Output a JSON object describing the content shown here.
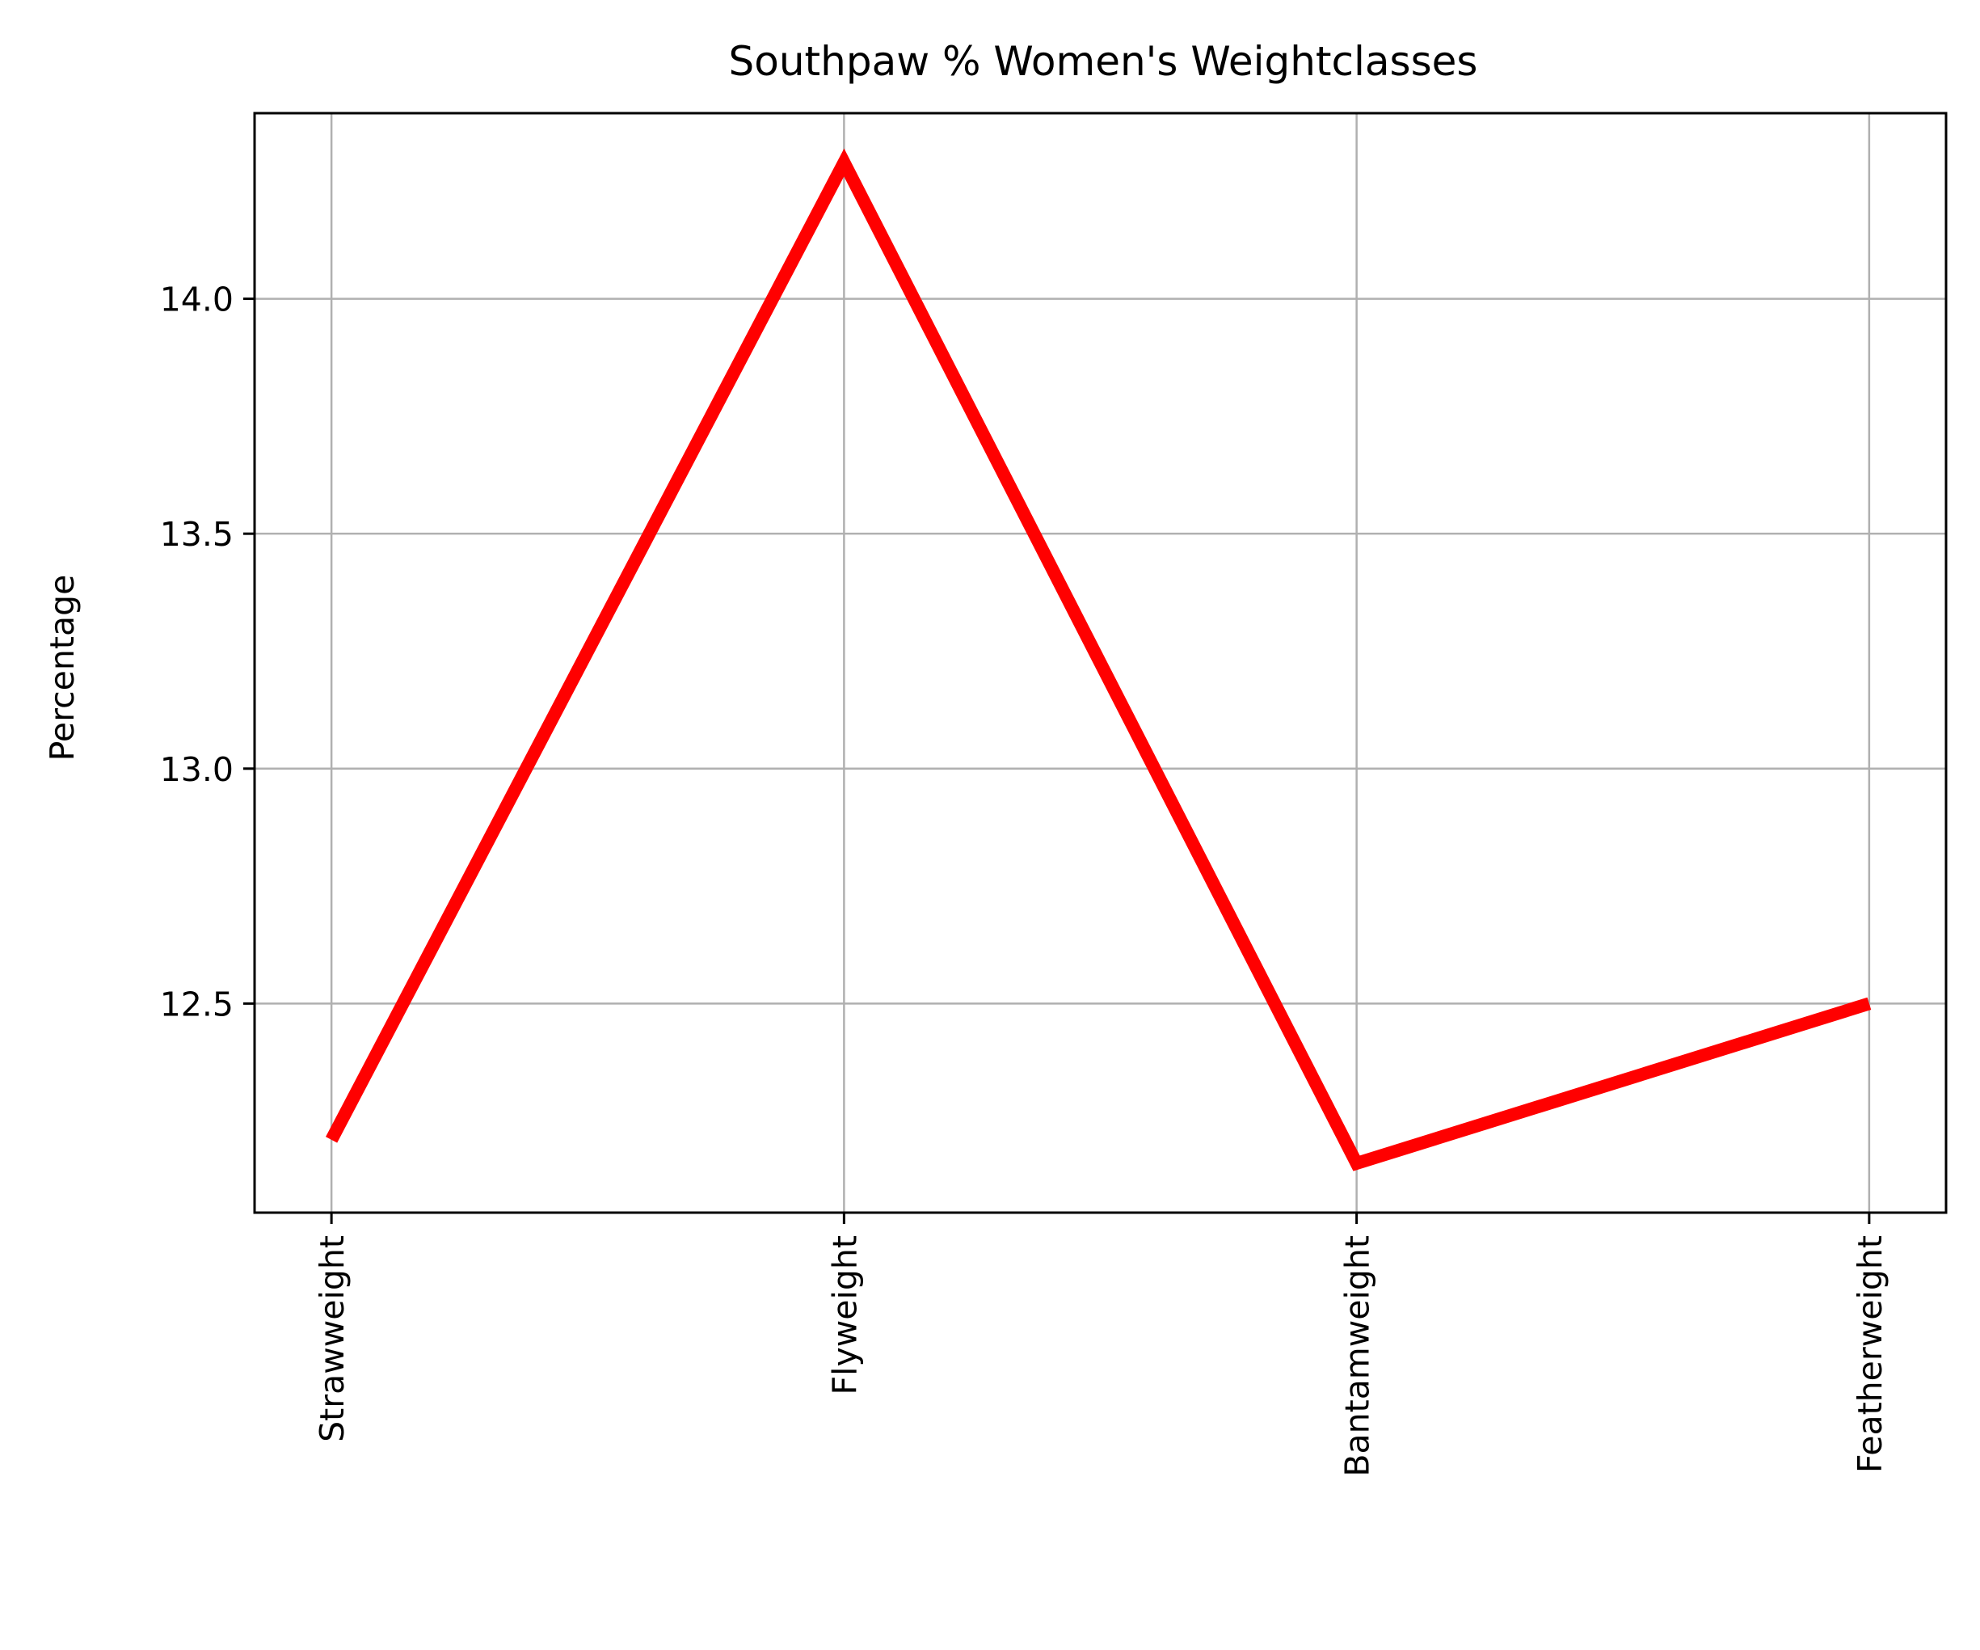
{
  "chart_data": {
    "type": "line",
    "title": "Southpaw % Women's Weightclasses",
    "xlabel": "",
    "ylabel": "Percentage",
    "categories": [
      "Strawweight",
      "Flyweight",
      "Bantamweight",
      "Featherweight"
    ],
    "series": [
      {
        "values": [
          12.21,
          14.29,
          12.16,
          12.5
        ],
        "color": "#ff0000"
      }
    ],
    "yticks": [
      "12.5",
      "13.0",
      "13.5",
      "14.0"
    ],
    "ylim": [
      12.055,
      14.395
    ],
    "grid": true,
    "x_tick_rotation": "vertical"
  }
}
